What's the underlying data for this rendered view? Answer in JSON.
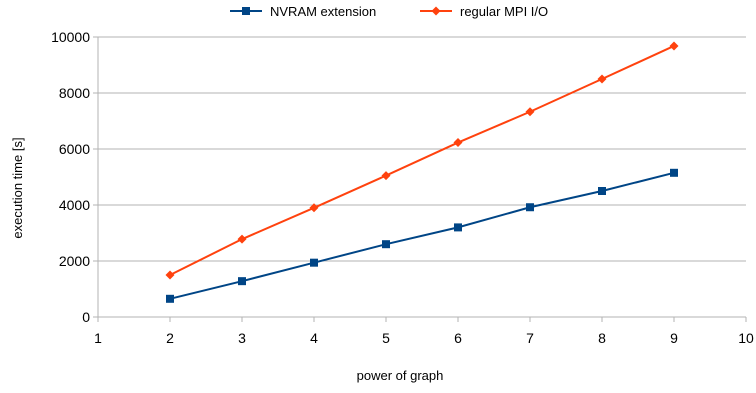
{
  "chart_data": {
    "type": "line",
    "title": "",
    "xlabel": "power of graph",
    "ylabel": "execution time [s]",
    "xlim": [
      1,
      10
    ],
    "ylim": [
      0,
      10000
    ],
    "x_ticks": [
      "1",
      "2",
      "3",
      "4",
      "5",
      "6",
      "7",
      "8",
      "9",
      "10"
    ],
    "y_ticks": [
      "0",
      "2000",
      "4000",
      "6000",
      "8000",
      "10000"
    ],
    "grid": true,
    "legend_position": "top-center",
    "x": [
      2,
      3,
      4,
      5,
      6,
      7,
      8,
      9
    ],
    "series": [
      {
        "name": "NVRAM extension",
        "color": "#004586",
        "marker": "square",
        "values": [
          650,
          1280,
          1940,
          2600,
          3200,
          3920,
          4500,
          5150
        ]
      },
      {
        "name": "regular MPI I/O",
        "color": "#ff420e",
        "marker": "diamond",
        "values": [
          1500,
          2780,
          3900,
          5050,
          6230,
          7330,
          8500,
          9680
        ]
      }
    ]
  }
}
